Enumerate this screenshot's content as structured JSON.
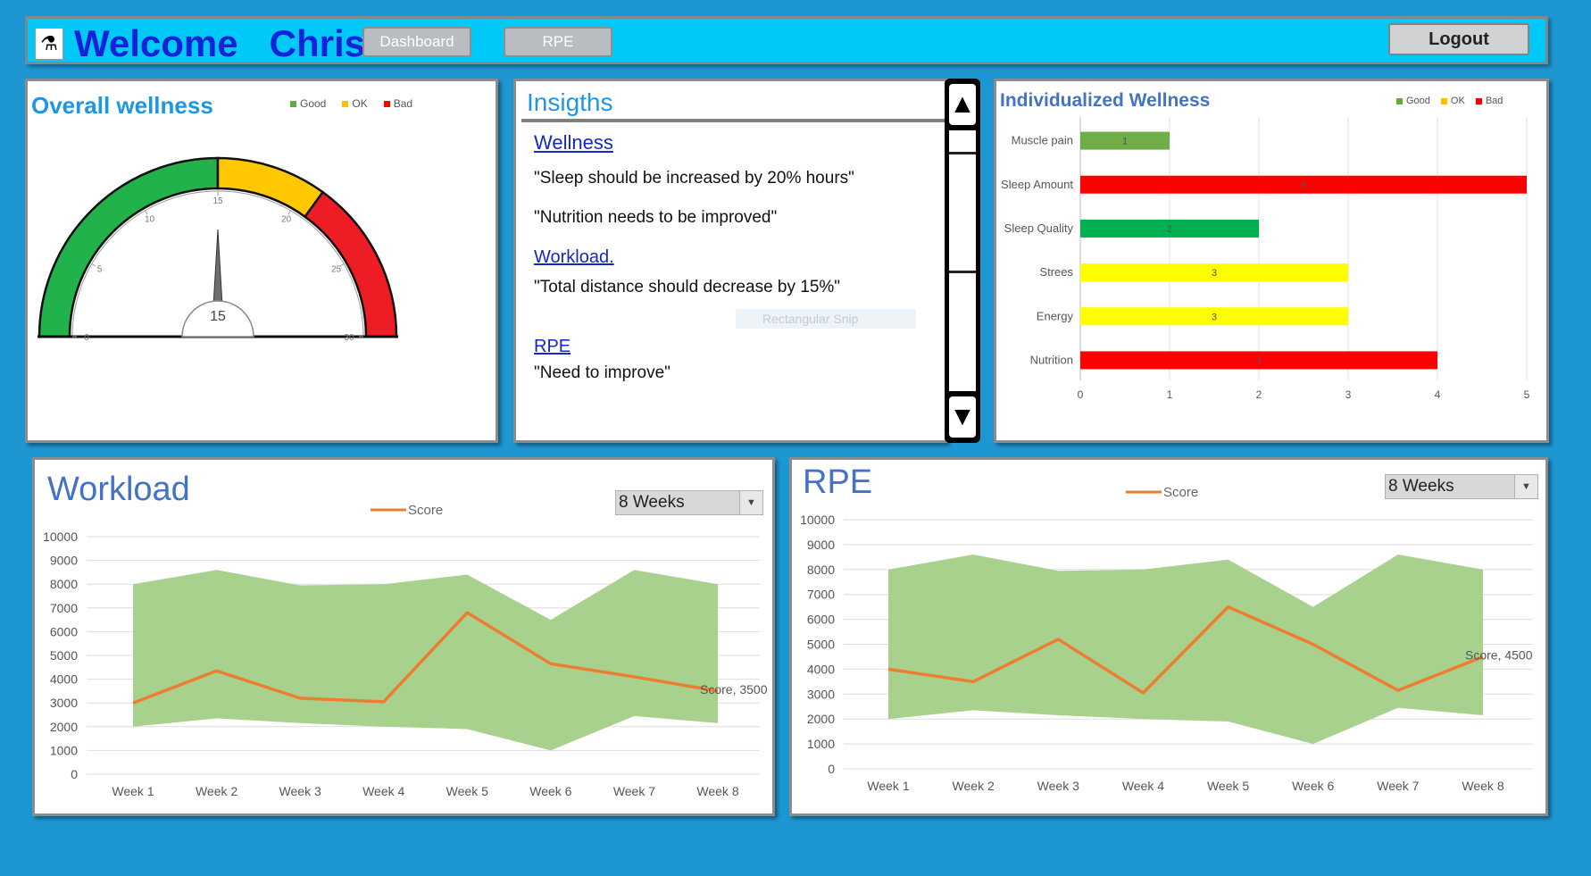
{
  "header": {
    "logo_icon": "app-logo-icon",
    "welcome_label": "Welcome",
    "user_name": "Chris",
    "nav": {
      "dashboard_label": "Dashboard",
      "rpe_label": "RPE"
    },
    "logout_label": "Logout"
  },
  "overall_wellness": {
    "title": "Overall wellness",
    "legend": [
      {
        "label": "Good",
        "color": "#5fae3c"
      },
      {
        "label": "OK",
        "color": "#ffc000"
      },
      {
        "label": "Bad",
        "color": "#ff0000"
      }
    ],
    "gauge": {
      "min": 0,
      "max": 30,
      "value": 15,
      "value_label": "15",
      "ticks": [
        "0",
        "5",
        "10",
        "15",
        "20",
        "25",
        "30"
      ],
      "bands": [
        {
          "from": 0,
          "to": 15,
          "color": "#21b24c"
        },
        {
          "from": 15,
          "to": 21,
          "color": "#ffc800"
        },
        {
          "from": 21,
          "to": 30,
          "color": "#ee1c24"
        }
      ]
    }
  },
  "insights": {
    "title": "Insigths",
    "sections": [
      {
        "heading": "Wellness",
        "lines": [
          "\"Sleep should be increased by 20% hours\"",
          "\"Nutrition needs to be improved\""
        ]
      },
      {
        "heading": "Workload.",
        "lines": [
          "\"Total distance should decrease by 15%\""
        ]
      },
      {
        "heading": "RPE",
        "lines": [
          "\"Need to improve\""
        ]
      }
    ],
    "overlay_text": "Rectangular Snip",
    "scroll_up_icon": "triangle-up-icon",
    "scroll_down_icon": "triangle-down-icon"
  },
  "individual_wellness": {
    "title": "Individualized Wellness",
    "legend": [
      {
        "label": "Good",
        "color": "#5fae3c"
      },
      {
        "label": "OK",
        "color": "#ffc000"
      },
      {
        "label": "Bad",
        "color": "#ff0000"
      }
    ],
    "chart_data": {
      "type": "bar",
      "orientation": "horizontal",
      "categories": [
        "Muscle pain",
        "Sleep Amount",
        "Sleep Quality",
        "Strees",
        "Energy",
        "Nutrition"
      ],
      "values": [
        1,
        5,
        2,
        3,
        3,
        4
      ],
      "value_labels": [
        "1",
        "5",
        "2",
        "3",
        "3",
        "4"
      ],
      "colors": [
        "#70ad47",
        "#ff0000",
        "#00b050",
        "#ffff00",
        "#ffff00",
        "#ff0000"
      ],
      "xlim": [
        0,
        5
      ],
      "xticks": [
        "0",
        "1",
        "2",
        "3",
        "4",
        "5"
      ],
      "grid": true,
      "legend_position": "top-right"
    }
  },
  "workload": {
    "title": "Workload",
    "dropdown_value": "8 Weeks",
    "chart_data": {
      "type": "line",
      "x": [
        "Week 1",
        "Week 2",
        "Week 3",
        "Week 4",
        "Week 5",
        "Week 6",
        "Week 7",
        "Week 8"
      ],
      "band_upper": [
        8000,
        8600,
        7950,
        8000,
        8400,
        6500,
        8600,
        8000
      ],
      "band_lower": [
        2000,
        2350,
        2150,
        2000,
        1900,
        1000,
        2450,
        2150
      ],
      "band_color": "#a9d18e",
      "series": [
        {
          "name": "Score",
          "color": "#ed7d31",
          "values": [
            3000,
            4350,
            3200,
            3050,
            6800,
            4650,
            4100,
            3500
          ]
        }
      ],
      "end_label": "Score, 3500",
      "ylim": [
        0,
        10000
      ],
      "yticks": [
        "0",
        "1000",
        "2000",
        "3000",
        "4000",
        "5000",
        "6000",
        "7000",
        "8000",
        "9000",
        "10000"
      ],
      "grid": true,
      "legend_position": "top-center"
    }
  },
  "rpe": {
    "title": "RPE",
    "dropdown_value": "8 Weeks",
    "chart_data": {
      "type": "line",
      "x": [
        "Week 1",
        "Week 2",
        "Week 3",
        "Week 4",
        "Week 5",
        "Week 6",
        "Week 7",
        "Week 8"
      ],
      "band_upper": [
        8000,
        8600,
        7950,
        8000,
        8400,
        6500,
        8600,
        8000
      ],
      "band_lower": [
        2000,
        2350,
        2150,
        2000,
        1900,
        1000,
        2450,
        2150
      ],
      "band_color": "#a9d18e",
      "series": [
        {
          "name": "Score",
          "color": "#ed7d31",
          "values": [
            4000,
            3500,
            5200,
            3050,
            6500,
            5000,
            3150,
            4500
          ]
        }
      ],
      "end_label": "Score, 4500",
      "ylim": [
        0,
        10000
      ],
      "yticks": [
        "0",
        "1000",
        "2000",
        "3000",
        "4000",
        "5000",
        "6000",
        "7000",
        "8000",
        "9000",
        "10000"
      ],
      "grid": true,
      "legend_position": "top-center"
    }
  }
}
